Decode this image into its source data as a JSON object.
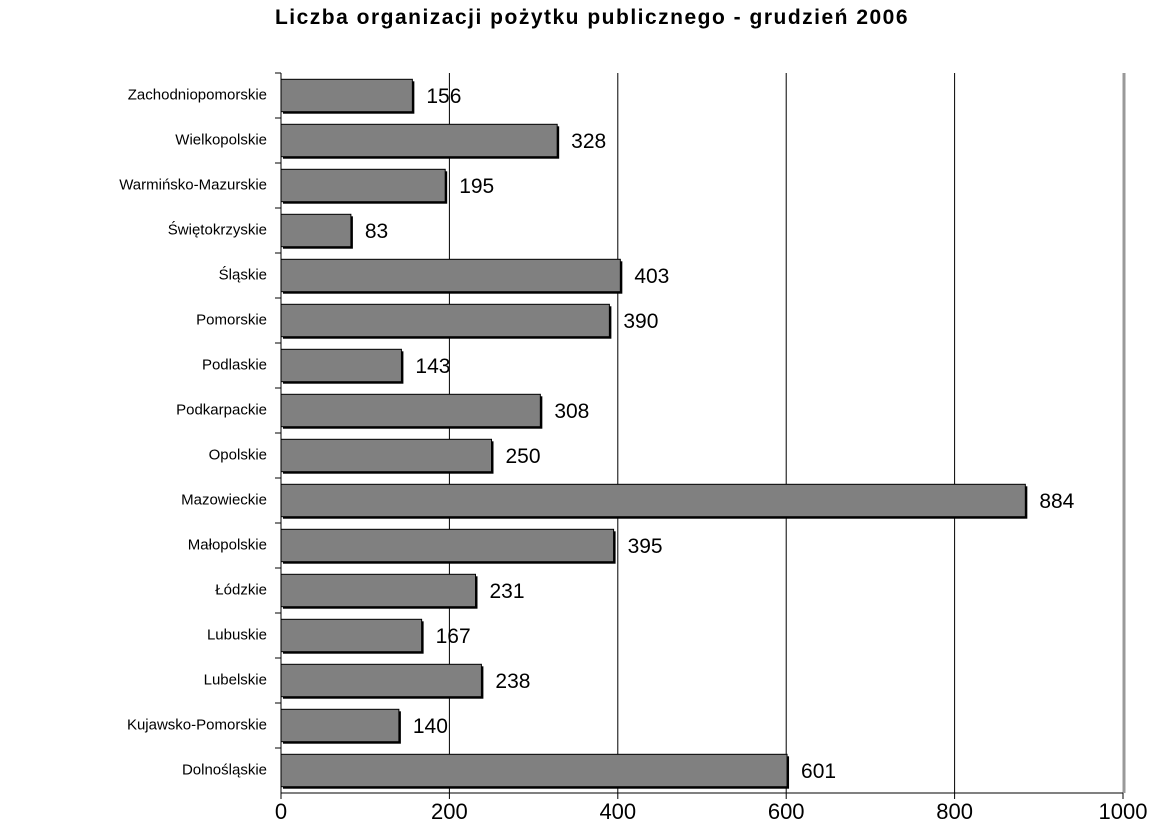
{
  "chart_data": {
    "type": "bar",
    "orientation": "horizontal",
    "title": "Liczba organizacji pożytku publicznego - grudzień 2006",
    "categories": [
      "Zachodniopomorskie",
      "Wielkopolskie",
      "Warmińsko-Mazurskie",
      "Świętokrzyskie",
      "Śląskie",
      "Pomorskie",
      "Podlaskie",
      "Podkarpackie",
      "Opolskie",
      "Mazowieckie",
      "Małopolskie",
      "Łódzkie",
      "Lubuskie",
      "Lubelskie",
      "Kujawsko-Pomorskie",
      "Dolnośląskie"
    ],
    "values": [
      156,
      328,
      195,
      83,
      403,
      390,
      143,
      308,
      250,
      884,
      395,
      231,
      167,
      238,
      140,
      601
    ],
    "color": "#808080",
    "xlim": [
      0,
      1000
    ],
    "xticks": [
      0,
      200,
      400,
      600,
      800,
      1000
    ],
    "grid": true
  }
}
